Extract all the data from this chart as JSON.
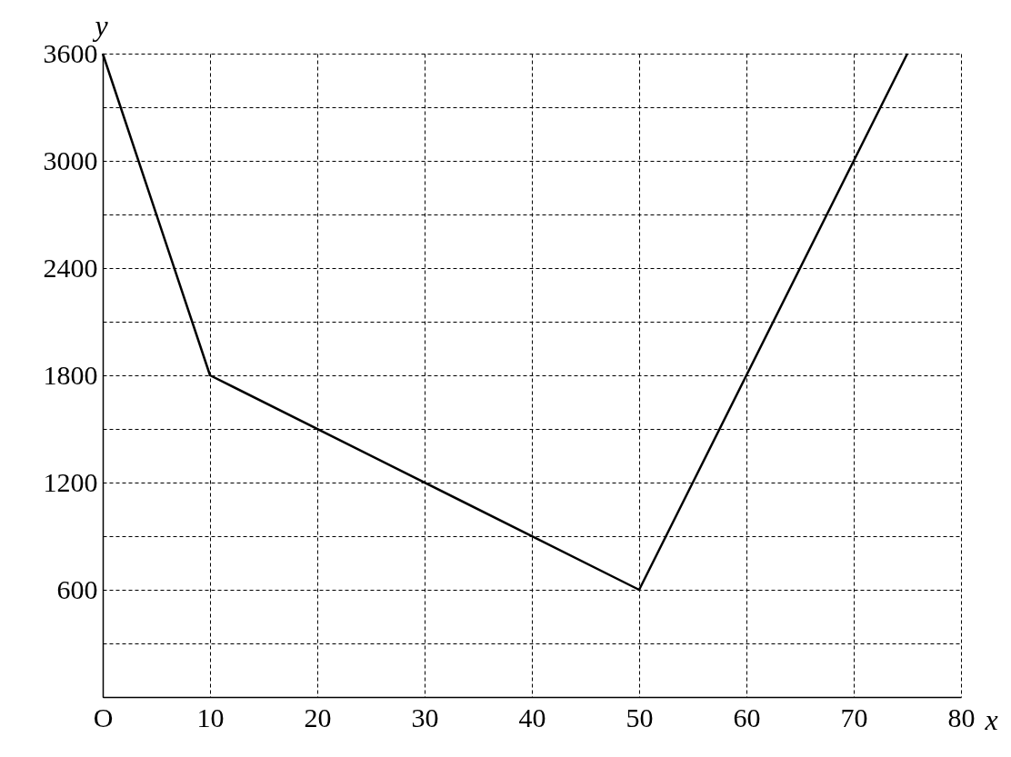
{
  "chart_data": {
    "type": "line",
    "xlabel": "x",
    "ylabel": "y",
    "x": [
      0,
      10,
      50,
      75
    ],
    "series": [
      {
        "color": "#000000",
        "values": [
          3600,
          1800,
          600,
          3600
        ]
      }
    ],
    "xlim": [
      0,
      80
    ],
    "ylim": [
      0,
      3600
    ],
    "xticks": [
      {
        "value": 0,
        "label": "O"
      },
      10,
      20,
      30,
      40,
      50,
      60,
      70,
      80
    ],
    "yticks": [
      {
        "value": 0,
        "label": null
      },
      {
        "value": 300,
        "label": null
      },
      600,
      {
        "value": 900,
        "label": null
      },
      1200,
      {
        "value": 1500,
        "label": null
      },
      1800,
      {
        "value": 2100,
        "label": null
      },
      2400,
      {
        "value": 2700,
        "label": null
      },
      3000,
      {
        "value": 3300,
        "label": null
      },
      3600
    ],
    "grid": true,
    "marker": "none",
    "line_style": "solid"
  }
}
